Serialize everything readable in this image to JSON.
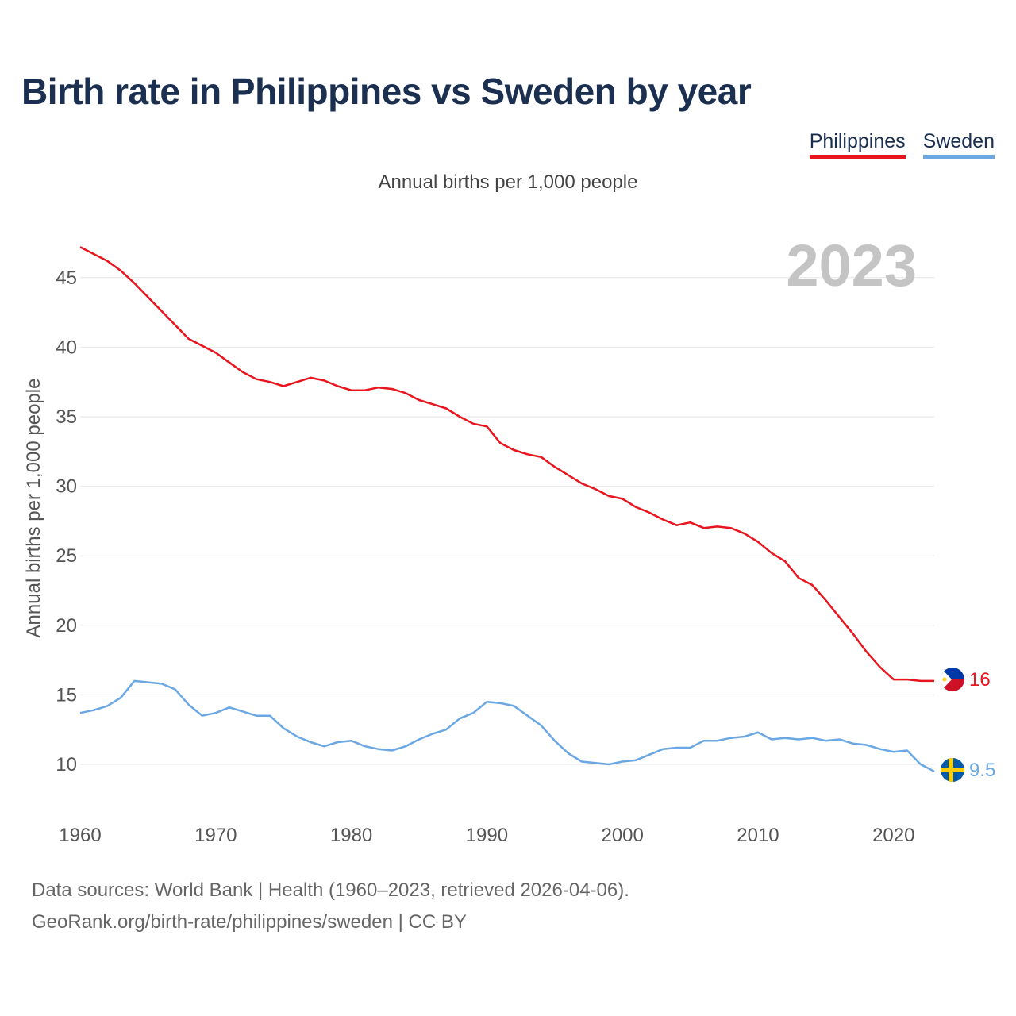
{
  "title": "Birth rate in Philippines vs Sweden by year",
  "legend": [
    {
      "name": "Philippines",
      "color": "#e8141e"
    },
    {
      "name": "Sweden",
      "color": "#6aa7e3"
    }
  ],
  "subtitle": "Annual births per 1,000 people",
  "year_watermark": "2023",
  "chart_data": {
    "type": "line",
    "title": "Birth rate in Philippines vs Sweden by year",
    "ylabel": "Annual births per 1,000 people",
    "xlabel": "",
    "xlim": [
      1960,
      2023
    ],
    "ylim": [
      7,
      48
    ],
    "yticks": [
      10,
      15,
      20,
      25,
      30,
      35,
      40,
      45
    ],
    "xticks": [
      1960,
      1970,
      1980,
      1990,
      2000,
      2010,
      2020
    ],
    "x": [
      1960,
      1961,
      1962,
      1963,
      1964,
      1965,
      1966,
      1967,
      1968,
      1969,
      1970,
      1971,
      1972,
      1973,
      1974,
      1975,
      1976,
      1977,
      1978,
      1979,
      1980,
      1981,
      1982,
      1983,
      1984,
      1985,
      1986,
      1987,
      1988,
      1989,
      1990,
      1991,
      1992,
      1993,
      1994,
      1995,
      1996,
      1997,
      1998,
      1999,
      2000,
      2001,
      2002,
      2003,
      2004,
      2005,
      2006,
      2007,
      2008,
      2009,
      2010,
      2011,
      2012,
      2013,
      2014,
      2015,
      2016,
      2017,
      2018,
      2019,
      2020,
      2021,
      2022,
      2023
    ],
    "series": [
      {
        "name": "Philippines",
        "color": "#e8141e",
        "end_label": "16",
        "values": [
          47.2,
          46.7,
          46.2,
          45.5,
          44.6,
          43.6,
          42.6,
          41.6,
          40.6,
          40.1,
          39.6,
          38.9,
          38.2,
          37.7,
          37.5,
          37.2,
          37.5,
          37.8,
          37.6,
          37.2,
          36.9,
          36.9,
          37.1,
          37.0,
          36.7,
          36.2,
          35.9,
          35.6,
          35.0,
          34.5,
          34.3,
          33.1,
          32.6,
          32.3,
          32.1,
          31.4,
          30.8,
          30.2,
          29.8,
          29.3,
          29.1,
          28.5,
          28.1,
          27.6,
          27.2,
          27.4,
          27.0,
          27.1,
          27.0,
          26.6,
          26.0,
          25.2,
          24.6,
          23.4,
          22.9,
          21.8,
          20.6,
          19.4,
          18.1,
          17.0,
          16.1,
          16.1,
          16.0,
          16.0
        ]
      },
      {
        "name": "Sweden",
        "color": "#6aa7e3",
        "end_label": "9.5",
        "values": [
          13.7,
          13.9,
          14.2,
          14.8,
          16.0,
          15.9,
          15.8,
          15.4,
          14.3,
          13.5,
          13.7,
          14.1,
          13.8,
          13.5,
          13.5,
          12.6,
          12.0,
          11.6,
          11.3,
          11.6,
          11.7,
          11.3,
          11.1,
          11.0,
          11.3,
          11.8,
          12.2,
          12.5,
          13.3,
          13.7,
          14.5,
          14.4,
          14.2,
          13.5,
          12.8,
          11.7,
          10.8,
          10.2,
          10.1,
          10.0,
          10.2,
          10.3,
          10.7,
          11.1,
          11.2,
          11.2,
          11.7,
          11.7,
          11.9,
          12.0,
          12.3,
          11.8,
          11.9,
          11.8,
          11.9,
          11.7,
          11.8,
          11.5,
          11.4,
          11.1,
          10.9,
          11.0,
          10.0,
          9.5
        ]
      }
    ]
  },
  "footer": {
    "line1": "Data sources: World Bank | Health (1960–2023, retrieved 2026-04-06).",
    "line2": "GeoRank.org/birth-rate/philippines/sweden | CC BY"
  }
}
